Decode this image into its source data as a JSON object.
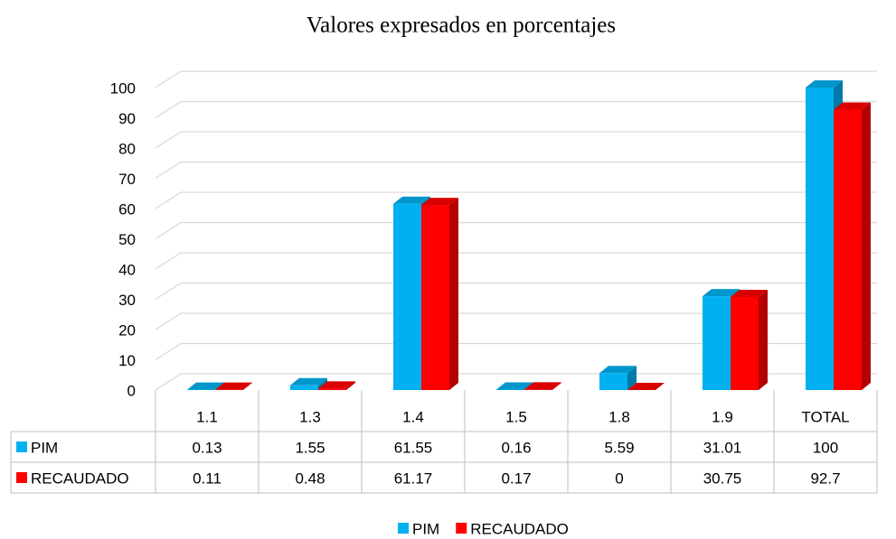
{
  "chart_data": {
    "type": "bar3d",
    "title": "Valores expresados en porcentajes",
    "categories": [
      "1.1",
      "1.3",
      "1.4",
      "1.5",
      "1.8",
      "1.9",
      "TOTAL"
    ],
    "series": [
      {
        "name": "PIM",
        "color": "#00b0f0",
        "values": [
          0.13,
          1.55,
          61.55,
          0.16,
          5.59,
          31.01,
          100
        ]
      },
      {
        "name": "RECAUDADO",
        "color": "#ff0000",
        "values": [
          0.11,
          0.48,
          61.17,
          0.17,
          0,
          30.75,
          92.7
        ]
      }
    ],
    "ylim": [
      0,
      100
    ],
    "yticks": [
      0,
      10,
      20,
      30,
      40,
      50,
      60,
      70,
      80,
      90,
      100
    ],
    "grid": true,
    "legend": "bottom",
    "data_table": true
  }
}
